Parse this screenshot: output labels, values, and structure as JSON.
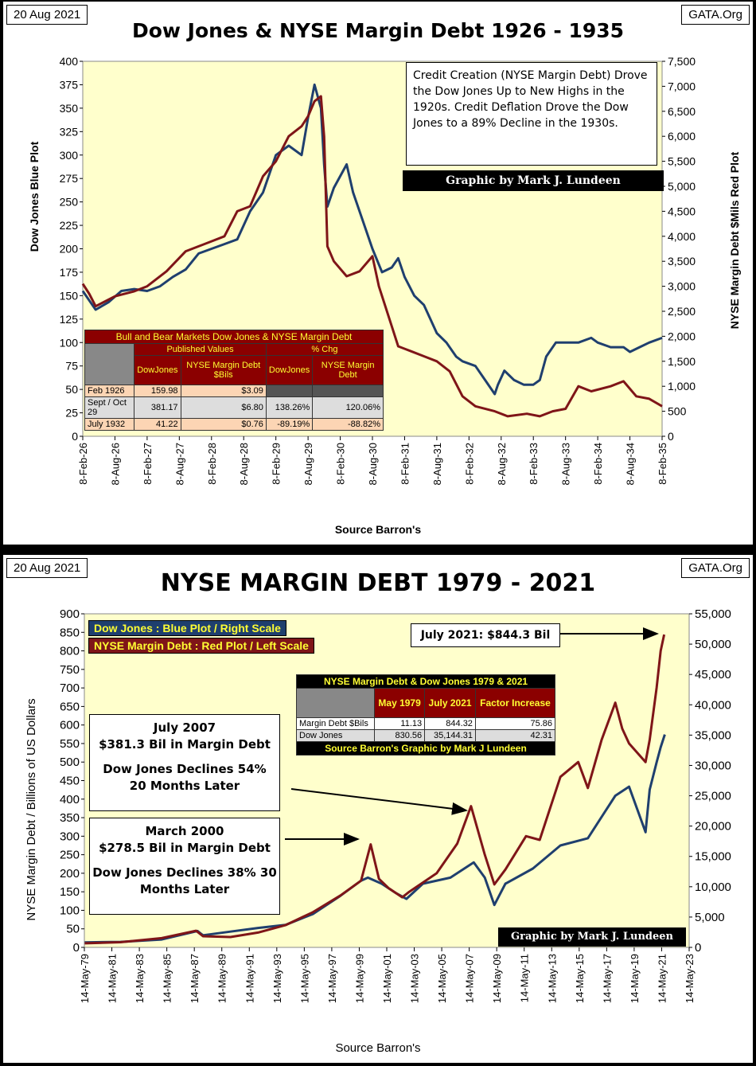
{
  "panel1": {
    "date": "20 Aug 2021",
    "site": "GATA.Org",
    "title": "Dow Jones & NYSE Margin Debt 1926 - 1935",
    "left_axis_label": "Dow Jones    Blue Plot",
    "right_axis_label": "NYSE Margin Debt $Mils    Red Plot",
    "source": "Source Barron's",
    "note": "Credit Creation (NYSE Margin Debt) Drove the Dow Jones Up to New Highs in the 1920s.  Credit Deflation Drove the Dow Jones to a 89% Decline in the 1930s.",
    "credit": "Graphic by Mark J. Lundeen",
    "table": {
      "title": "Bull and Bear Markets  Dow Jones & NYSE Margin Debt",
      "group1": "Published Values",
      "group2": "% Chg",
      "col1": "DowJones",
      "col2": "NYSE Margin Debt $Bils",
      "col3": "DowJones",
      "col4": "NYSE Margin Debt",
      "rows": [
        {
          "label": "Feb 1926",
          "v1": "159.98",
          "v2": "$3.09",
          "v3": "",
          "v4": ""
        },
        {
          "label": "Sept / Oct 29",
          "v1": "381.17",
          "v2": "$6.80",
          "v3": "138.26%",
          "v4": "120.06%"
        },
        {
          "label": "July 1932",
          "v1": "41.22",
          "v2": "$0.76",
          "v3": "-89.19%",
          "v4": "-88.82%"
        }
      ]
    }
  },
  "panel2": {
    "date": "20 Aug 2021",
    "site": "GATA.Org",
    "title": "NYSE MARGIN DEBT 1979 - 2021",
    "left_axis_label": "NYSE Margin Debt  /  Billions of US Dollars",
    "source": "Source Barron's",
    "legend_blue": "Dow Jones : Blue Plot / Right Scale",
    "legend_red": "NYSE Margin Debt : Red Plot / Left Scale",
    "callout_2021": "July 2021: $844.3 Bil",
    "callout_2007": {
      "l1": "July 2007",
      "l2": "$381.3 Bil in Margin Debt",
      "l3": "Dow Jones Declines 54%",
      "l4": "20 Months Later"
    },
    "callout_2000": {
      "l1": "March 2000",
      "l2": "$278.5 Bil in Margin Debt",
      "l3": "Dow Jones Declines 38% 30",
      "l4": "Months Later"
    },
    "credit": "Graphic by Mark J. Lundeen",
    "table": {
      "title": "NYSE Margin Debt & Dow Jones 1979 & 2021",
      "h1": "May 1979",
      "h2": "July 2021",
      "h3": "Factor Increase",
      "rows": [
        {
          "label": "Margin Debt $Bils",
          "v1": "11.13",
          "v2": "844.32",
          "v3": "75.86"
        },
        {
          "label": "Dow Jones",
          "v1": "830.56",
          "v2": "35,144.31",
          "v3": "42.31"
        }
      ],
      "footer": "Source Barron's   Graphic by Mark J Lundeen"
    }
  },
  "colors": {
    "blue": "#1f3f6e",
    "red": "#7f1518",
    "plot_bg": "#ffffcc",
    "table_red": "#8b0000"
  },
  "chart_data": [
    {
      "type": "line",
      "title": "Dow Jones & NYSE Margin Debt 1926 - 1935",
      "xlabel": "Source Barron's",
      "ylabel": "Dow Jones    Blue Plot",
      "ylabel_right": "NYSE Margin Debt $Mils    Red Plot",
      "ylim": [
        0,
        400
      ],
      "ylim_right": [
        0,
        7500
      ],
      "y_ticks": [
        "0",
        "25",
        "50",
        "75",
        "100",
        "125",
        "150",
        "175",
        "200",
        "225",
        "250",
        "275",
        "300",
        "325",
        "350",
        "375",
        "400"
      ],
      "y_ticks_right": [
        "0",
        "500",
        "1,000",
        "1,500",
        "2,000",
        "2,500",
        "3,000",
        "3,500",
        "4,000",
        "4,500",
        "5,000",
        "5,500",
        "6,000",
        "6,500",
        "7,000",
        "7,500"
      ],
      "x_ticks": [
        "8-Feb-26",
        "8-Aug-26",
        "8-Feb-27",
        "8-Aug-27",
        "8-Feb-28",
        "8-Aug-28",
        "8-Feb-29",
        "8-Aug-29",
        "8-Feb-30",
        "8-Aug-30",
        "8-Feb-31",
        "8-Aug-31",
        "8-Feb-32",
        "8-Aug-32",
        "8-Feb-33",
        "8-Aug-33",
        "8-Feb-34",
        "8-Aug-34",
        "8-Feb-35"
      ],
      "x_range": [
        1926.1,
        1935.1
      ],
      "grid": false,
      "series": [
        {
          "name": "Dow Jones",
          "axis": "left",
          "color": "#1f3f6e",
          "x": [
            1926.1,
            1926.2,
            1926.3,
            1926.5,
            1926.7,
            1926.9,
            1927.1,
            1927.3,
            1927.5,
            1927.7,
            1927.9,
            1928.1,
            1928.3,
            1928.5,
            1928.7,
            1928.9,
            1929.1,
            1929.3,
            1929.5,
            1929.6,
            1929.7,
            1929.8,
            1929.85,
            1929.9,
            1930.0,
            1930.2,
            1930.3,
            1930.45,
            1930.6,
            1930.75,
            1930.9,
            1931.0,
            1931.1,
            1931.25,
            1931.4,
            1931.5,
            1931.6,
            1931.75,
            1931.9,
            1932.0,
            1932.2,
            1932.35,
            1932.5,
            1932.55,
            1932.65,
            1932.8,
            1932.95,
            1933.1,
            1933.2,
            1933.3,
            1933.45,
            1933.6,
            1933.8,
            1934.0,
            1934.1,
            1934.3,
            1934.5,
            1934.6,
            1934.75,
            1934.9,
            1935.1
          ],
          "y": [
            155,
            145,
            135,
            143,
            155,
            157,
            155,
            160,
            170,
            178,
            195,
            200,
            205,
            210,
            240,
            260,
            300,
            310,
            300,
            340,
            375,
            350,
            290,
            245,
            265,
            290,
            260,
            230,
            200,
            175,
            180,
            190,
            170,
            150,
            140,
            125,
            110,
            100,
            85,
            80,
            75,
            60,
            45,
            55,
            70,
            60,
            55,
            55,
            60,
            85,
            100,
            100,
            100,
            105,
            100,
            95,
            95,
            90,
            95,
            100,
            105
          ]
        },
        {
          "name": "NYSE Margin Debt",
          "axis": "right",
          "color": "#7f1518",
          "x": [
            1926.1,
            1926.2,
            1926.3,
            1926.6,
            1926.9,
            1927.1,
            1927.4,
            1927.7,
            1927.9,
            1928.1,
            1928.3,
            1928.5,
            1928.7,
            1928.9,
            1929.1,
            1929.3,
            1929.5,
            1929.6,
            1929.7,
            1929.8,
            1929.85,
            1929.9,
            1930.0,
            1930.2,
            1930.4,
            1930.6,
            1930.7,
            1930.9,
            1931.0,
            1931.2,
            1931.4,
            1931.6,
            1931.8,
            1932.0,
            1932.2,
            1932.5,
            1932.7,
            1933.0,
            1933.2,
            1933.4,
            1933.6,
            1933.8,
            1934.0,
            1934.3,
            1934.5,
            1934.7,
            1934.9,
            1935.1
          ],
          "y": [
            3050,
            2850,
            2600,
            2800,
            2900,
            3000,
            3300,
            3700,
            3800,
            3900,
            4000,
            4500,
            4600,
            5200,
            5500,
            6000,
            6200,
            6400,
            6700,
            6800,
            6000,
            3800,
            3500,
            3200,
            3300,
            3600,
            3000,
            2200,
            1800,
            1700,
            1600,
            1500,
            1300,
            800,
            600,
            500,
            400,
            450,
            400,
            500,
            550,
            1000,
            900,
            1000,
            1100,
            800,
            750,
            600
          ]
        }
      ]
    },
    {
      "type": "line",
      "title": "NYSE MARGIN DEBT 1979 - 2021",
      "xlabel": "Source Barron's",
      "ylabel": "NYSE Margin Debt  /  Billions of US Dollars",
      "ylim": [
        0,
        900
      ],
      "ylim_right": [
        0,
        55000
      ],
      "y_ticks": [
        "0",
        "50",
        "100",
        "150",
        "200",
        "250",
        "300",
        "350",
        "400",
        "450",
        "500",
        "550",
        "600",
        "650",
        "700",
        "750",
        "800",
        "850",
        "900"
      ],
      "y_ticks_right": [
        "0",
        "5,000",
        "10,000",
        "15,000",
        "20,000",
        "25,000",
        "30,000",
        "35,000",
        "40,000",
        "45,000",
        "50,000",
        "55,000"
      ],
      "x_ticks": [
        "14-May-79",
        "14-May-81",
        "14-May-83",
        "14-May-85",
        "14-May-87",
        "14-May-89",
        "14-May-91",
        "14-May-93",
        "14-May-95",
        "14-May-97",
        "14-May-99",
        "14-May-01",
        "14-May-03",
        "14-May-05",
        "14-May-07",
        "14-May-09",
        "14-May-11",
        "14-May-13",
        "14-May-15",
        "14-May-17",
        "14-May-19",
        "14-May-21",
        "14-May-23"
      ],
      "x_range": [
        1979.37,
        2023.37
      ],
      "grid": false,
      "series": [
        {
          "name": "Dow Jones",
          "axis": "right",
          "color": "#1f3f6e",
          "x": [
            1979.4,
            1982,
            1985,
            1987.6,
            1988,
            1990,
            1992,
            1994,
            1996,
            1998,
            1999.5,
            2000,
            2001,
            2002,
            2002.8,
            2004,
            2006,
            2007.7,
            2008.5,
            2009.2,
            2010,
            2012,
            2014,
            2016,
            2018,
            2019,
            2020.2,
            2020.5,
            2021.0,
            2021.3,
            2021.6
          ],
          "y": [
            830,
            900,
            1300,
            2700,
            2000,
            2600,
            3200,
            3700,
            5500,
            8500,
            11000,
            11500,
            10500,
            9000,
            8000,
            10500,
            11500,
            14000,
            11500,
            7000,
            10500,
            13000,
            16800,
            18000,
            25000,
            26500,
            19000,
            26000,
            30500,
            33000,
            35100
          ]
        },
        {
          "name": "NYSE Margin Debt",
          "axis": "left",
          "color": "#7f1518",
          "x": [
            1979.4,
            1982,
            1985,
            1987.5,
            1988,
            1990,
            1992,
            1994,
            1996,
            1998,
            1999.5,
            2000.2,
            2000.8,
            2001.5,
            2002.5,
            2003,
            2005,
            2006.5,
            2007.5,
            2008.5,
            2009.2,
            2010,
            2011.5,
            2012.5,
            2014,
            2015.3,
            2016,
            2017,
            2018.0,
            2018.5,
            2019,
            2020.2,
            2020.5,
            2021.0,
            2021.3,
            2021.55
          ],
          "y": [
            11,
            14,
            25,
            45,
            30,
            28,
            40,
            60,
            95,
            140,
            180,
            278,
            185,
            160,
            135,
            150,
            200,
            280,
            381,
            250,
            170,
            210,
            300,
            290,
            460,
            500,
            430,
            560,
            660,
            590,
            550,
            500,
            560,
            700,
            800,
            844
          ]
        }
      ]
    }
  ]
}
